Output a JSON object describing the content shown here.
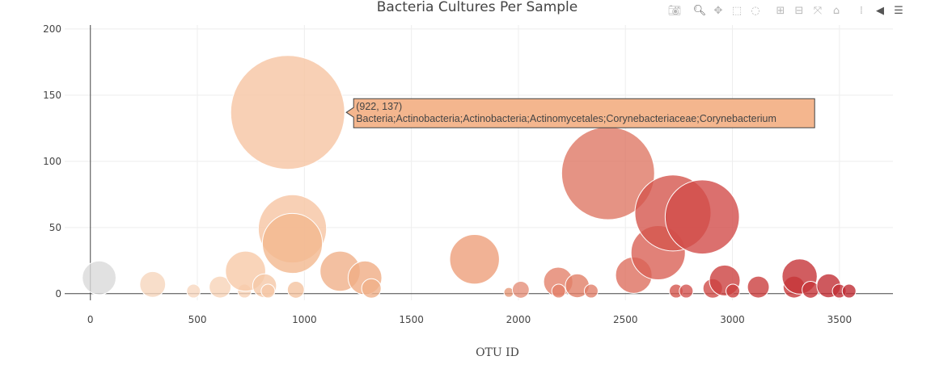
{
  "chart_data": {
    "type": "scatter",
    "title": "Bacteria Cultures Per Sample",
    "xlabel": "OTU ID",
    "ylabel": "",
    "xlim": [
      -120,
      3750
    ],
    "ylim": [
      -5,
      203
    ],
    "x_ticks": [
      0,
      500,
      1000,
      1500,
      2000,
      2500,
      3000,
      3500
    ],
    "y_ticks": [
      0,
      50,
      100,
      150,
      200
    ],
    "grid": true,
    "points": [
      {
        "x": 41,
        "y": 12,
        "color": "#d9d9d9"
      },
      {
        "x": 291,
        "y": 7,
        "color": "#f6d6bd"
      },
      {
        "x": 482,
        "y": 2,
        "color": "#f7d7bf"
      },
      {
        "x": 606,
        "y": 5,
        "color": "#f7d3b8"
      },
      {
        "x": 720,
        "y": 2,
        "color": "#f7d2b6"
      },
      {
        "x": 725,
        "y": 17,
        "color": "#f7c9a8"
      },
      {
        "x": 814,
        "y": 6,
        "color": "#f5c8a8"
      },
      {
        "x": 830,
        "y": 2,
        "color": "#f5c8a8"
      },
      {
        "x": 922,
        "y": 137,
        "color": "#f6c4a2"
      },
      {
        "x": 944,
        "y": 49,
        "color": "#f6c4a2"
      },
      {
        "x": 944,
        "y": 38,
        "color": "#f3b88f"
      },
      {
        "x": 960,
        "y": 3,
        "color": "#f4c3a0"
      },
      {
        "x": 1167,
        "y": 17,
        "color": "#f0b08a"
      },
      {
        "x": 1283,
        "y": 12,
        "color": "#f0ad85"
      },
      {
        "x": 1313,
        "y": 4,
        "color": "#f0b08a"
      },
      {
        "x": 1795,
        "y": 26,
        "color": "#ee9f7b"
      },
      {
        "x": 1955,
        "y": 1,
        "color": "#e69878"
      },
      {
        "x": 2011,
        "y": 3,
        "color": "#e5907a"
      },
      {
        "x": 2186,
        "y": 9,
        "color": "#e4826b"
      },
      {
        "x": 2188,
        "y": 2,
        "color": "#e4826b"
      },
      {
        "x": 2275,
        "y": 6,
        "color": "#e17f68"
      },
      {
        "x": 2340,
        "y": 2,
        "color": "#e17f6a"
      },
      {
        "x": 2419,
        "y": 91,
        "color": "#df7865"
      },
      {
        "x": 2539,
        "y": 14,
        "color": "#dd6f5f"
      },
      {
        "x": 2653,
        "y": 31,
        "color": "#d96256"
      },
      {
        "x": 2722,
        "y": 61,
        "color": "#d5564e"
      },
      {
        "x": 2737,
        "y": 2,
        "color": "#d5564e"
      },
      {
        "x": 2784,
        "y": 2,
        "color": "#d35450"
      },
      {
        "x": 2859,
        "y": 58,
        "color": "#d24c4a"
      },
      {
        "x": 2908,
        "y": 4,
        "color": "#d04c48"
      },
      {
        "x": 2964,
        "y": 10,
        "color": "#cc4140"
      },
      {
        "x": 3002,
        "y": 2,
        "color": "#cc4140"
      },
      {
        "x": 3121,
        "y": 5,
        "color": "#cb3f3f"
      },
      {
        "x": 3288,
        "y": 5,
        "color": "#c8393b"
      },
      {
        "x": 3314,
        "y": 13,
        "color": "#c53438"
      },
      {
        "x": 3365,
        "y": 3,
        "color": "#c53438"
      },
      {
        "x": 3450,
        "y": 6,
        "color": "#c23036"
      },
      {
        "x": 3499,
        "y": 2,
        "color": "#c23036"
      },
      {
        "x": 3545,
        "y": 2,
        "color": "#bf2c33"
      }
    ],
    "hover": {
      "x": 922,
      "y": 137,
      "coord_text": "(922, 137)",
      "label": "Bacteria;Actinobacteria;Actinobacteria;Actinomycetales;Corynebacteriaceae;Corynebacterium",
      "color": "#f4b68e"
    }
  },
  "modebar": [
    {
      "name": "camera-icon",
      "glyph": "📷︎"
    },
    {
      "name": "zoom-icon",
      "glyph": "🔍︎"
    },
    {
      "name": "pan-icon",
      "glyph": "✥"
    },
    {
      "name": "box-select-icon",
      "glyph": "⬚"
    },
    {
      "name": "lasso-select-icon",
      "glyph": "◌"
    },
    {
      "name": "zoom-in-icon",
      "glyph": "⊞"
    },
    {
      "name": "zoom-out-icon",
      "glyph": "⊟"
    },
    {
      "name": "autoscale-icon",
      "glyph": "⤧"
    },
    {
      "name": "reset-axes-icon",
      "glyph": "⌂"
    },
    {
      "name": "spike-lines-icon",
      "glyph": "⁞"
    },
    {
      "name": "hover-closest-icon",
      "glyph": "◀"
    },
    {
      "name": "hover-compare-icon",
      "glyph": "☰"
    }
  ]
}
